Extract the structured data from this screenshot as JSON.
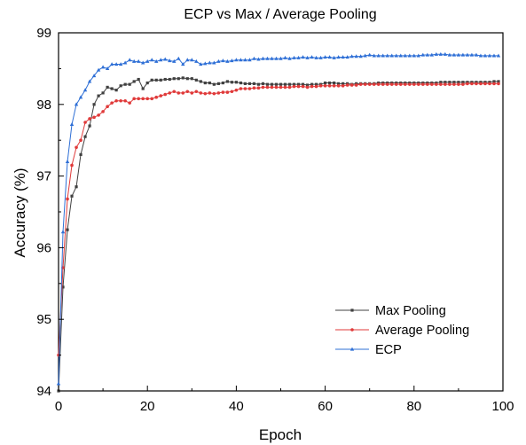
{
  "chart_data": {
    "type": "line",
    "title": "ECP vs Max / Average Pooling",
    "xlabel": "Epoch",
    "ylabel": "Accuracy (%)",
    "xlim": [
      0,
      100
    ],
    "ylim": [
      94,
      99
    ],
    "xticks": [
      0,
      20,
      40,
      60,
      80,
      100
    ],
    "yticks": [
      94,
      95,
      96,
      97,
      98,
      99
    ],
    "tick_labels": {
      "x": [
        "0",
        "20",
        "40",
        "60",
        "80",
        "100"
      ],
      "y": [
        "94",
        "95",
        "96",
        "97",
        "98",
        "99"
      ]
    },
    "grid": false,
    "legend_position": "lower-right",
    "series": [
      {
        "name": "Max Pooling",
        "color": "#404040",
        "marker": "square",
        "x": [
          0,
          1,
          2,
          3,
          4,
          5,
          6,
          7,
          8,
          9,
          10,
          11,
          12,
          13,
          14,
          15,
          16,
          17,
          18,
          19,
          20,
          21,
          22,
          23,
          24,
          25,
          26,
          27,
          28,
          29,
          30,
          31,
          32,
          33,
          34,
          35,
          36,
          37,
          38,
          39,
          40,
          41,
          42,
          43,
          44,
          45,
          46,
          47,
          48,
          49,
          50,
          51,
          52,
          53,
          54,
          55,
          56,
          57,
          58,
          59,
          60,
          61,
          62,
          63,
          64,
          65,
          66,
          67,
          68,
          69,
          70,
          71,
          72,
          73,
          74,
          75,
          76,
          77,
          78,
          79,
          80,
          81,
          82,
          83,
          84,
          85,
          86,
          87,
          88,
          89,
          90,
          91,
          92,
          93,
          94,
          95,
          96,
          97,
          98,
          99
        ],
        "y": [
          94.0,
          95.45,
          96.25,
          96.72,
          96.85,
          97.3,
          97.55,
          97.7,
          98.0,
          98.12,
          98.16,
          98.24,
          98.22,
          98.2,
          98.26,
          98.28,
          98.28,
          98.32,
          98.35,
          98.22,
          98.3,
          98.34,
          98.34,
          98.34,
          98.35,
          98.35,
          98.36,
          98.36,
          98.37,
          98.36,
          98.36,
          98.34,
          98.32,
          98.3,
          98.3,
          98.28,
          98.29,
          98.3,
          98.32,
          98.31,
          98.31,
          98.3,
          98.29,
          98.29,
          98.29,
          98.28,
          98.29,
          98.28,
          98.28,
          98.28,
          98.28,
          98.28,
          98.28,
          98.28,
          98.28,
          98.28,
          98.27,
          98.28,
          98.28,
          98.28,
          98.3,
          98.3,
          98.3,
          98.29,
          98.29,
          98.29,
          98.28,
          98.29,
          98.29,
          98.29,
          98.29,
          98.29,
          98.3,
          98.3,
          98.3,
          98.3,
          98.3,
          98.3,
          98.3,
          98.3,
          98.3,
          98.3,
          98.3,
          98.3,
          98.3,
          98.3,
          98.31,
          98.31,
          98.31,
          98.31,
          98.31,
          98.31,
          98.31,
          98.31,
          98.31,
          98.31,
          98.31,
          98.31,
          98.32,
          98.32
        ]
      },
      {
        "name": "Average Pooling",
        "color": "#e03a3a",
        "marker": "circle",
        "x": [
          0,
          1,
          2,
          3,
          4,
          5,
          6,
          7,
          8,
          9,
          10,
          11,
          12,
          13,
          14,
          15,
          16,
          17,
          18,
          19,
          20,
          21,
          22,
          23,
          24,
          25,
          26,
          27,
          28,
          29,
          30,
          31,
          32,
          33,
          34,
          35,
          36,
          37,
          38,
          39,
          40,
          41,
          42,
          43,
          44,
          45,
          46,
          47,
          48,
          49,
          50,
          51,
          52,
          53,
          54,
          55,
          56,
          57,
          58,
          59,
          60,
          61,
          62,
          63,
          64,
          65,
          66,
          67,
          68,
          69,
          70,
          71,
          72,
          73,
          74,
          75,
          76,
          77,
          78,
          79,
          80,
          81,
          82,
          83,
          84,
          85,
          86,
          87,
          88,
          89,
          90,
          91,
          92,
          93,
          94,
          95,
          96,
          97,
          98,
          99
        ],
        "y": [
          94.5,
          95.72,
          96.68,
          97.15,
          97.4,
          97.5,
          97.75,
          97.8,
          97.82,
          97.85,
          97.9,
          97.97,
          98.02,
          98.05,
          98.05,
          98.05,
          98.02,
          98.08,
          98.08,
          98.08,
          98.08,
          98.08,
          98.1,
          98.12,
          98.14,
          98.16,
          98.18,
          98.16,
          98.16,
          98.18,
          98.16,
          98.18,
          98.16,
          98.15,
          98.16,
          98.15,
          98.16,
          98.17,
          98.17,
          98.18,
          98.2,
          98.22,
          98.22,
          98.22,
          98.23,
          98.23,
          98.24,
          98.24,
          98.24,
          98.24,
          98.24,
          98.24,
          98.24,
          98.25,
          98.25,
          98.25,
          98.24,
          98.25,
          98.25,
          98.26,
          98.26,
          98.26,
          98.26,
          98.26,
          98.26,
          98.27,
          98.27,
          98.27,
          98.28,
          98.28,
          98.28,
          98.28,
          98.28,
          98.28,
          98.28,
          98.28,
          98.28,
          98.28,
          98.28,
          98.28,
          98.28,
          98.28,
          98.28,
          98.28,
          98.28,
          98.28,
          98.28,
          98.28,
          98.28,
          98.28,
          98.28,
          98.28,
          98.29,
          98.29,
          98.29,
          98.29,
          98.29,
          98.29,
          98.29,
          98.29
        ]
      },
      {
        "name": "ECP",
        "color": "#2e6fd6",
        "marker": "triangle",
        "x": [
          0,
          1,
          2,
          3,
          4,
          5,
          6,
          7,
          8,
          9,
          10,
          11,
          12,
          13,
          14,
          15,
          16,
          17,
          18,
          19,
          20,
          21,
          22,
          23,
          24,
          25,
          26,
          27,
          28,
          29,
          30,
          31,
          32,
          33,
          34,
          35,
          36,
          37,
          38,
          39,
          40,
          41,
          42,
          43,
          44,
          45,
          46,
          47,
          48,
          49,
          50,
          51,
          52,
          53,
          54,
          55,
          56,
          57,
          58,
          59,
          60,
          61,
          62,
          63,
          64,
          65,
          66,
          67,
          68,
          69,
          70,
          71,
          72,
          73,
          74,
          75,
          76,
          77,
          78,
          79,
          80,
          81,
          82,
          83,
          84,
          85,
          86,
          87,
          88,
          89,
          90,
          91,
          92,
          93,
          94,
          95,
          96,
          97,
          98,
          99
        ],
        "y": [
          94.1,
          96.22,
          97.2,
          97.72,
          98.0,
          98.1,
          98.2,
          98.32,
          98.4,
          98.48,
          98.52,
          98.5,
          98.56,
          98.56,
          98.56,
          98.58,
          98.62,
          98.6,
          98.6,
          98.58,
          98.6,
          98.62,
          98.6,
          98.62,
          98.63,
          98.61,
          98.6,
          98.64,
          98.56,
          98.62,
          98.62,
          98.6,
          98.56,
          98.57,
          98.58,
          98.58,
          98.6,
          98.61,
          98.6,
          98.61,
          98.62,
          98.62,
          98.62,
          98.62,
          98.64,
          98.63,
          98.64,
          98.64,
          98.64,
          98.64,
          98.64,
          98.65,
          98.64,
          98.65,
          98.65,
          98.66,
          98.65,
          98.66,
          98.65,
          98.65,
          98.66,
          98.66,
          98.65,
          98.66,
          98.66,
          98.66,
          98.67,
          98.67,
          98.67,
          98.68,
          98.69,
          98.68,
          98.68,
          98.68,
          98.68,
          98.68,
          98.68,
          98.68,
          98.68,
          98.68,
          98.68,
          98.68,
          98.69,
          98.69,
          98.69,
          98.7,
          98.7,
          98.7,
          98.69,
          98.69,
          98.69,
          98.69,
          98.69,
          98.69,
          98.69,
          98.68,
          98.68,
          98.68,
          98.68,
          98.68
        ]
      }
    ]
  }
}
